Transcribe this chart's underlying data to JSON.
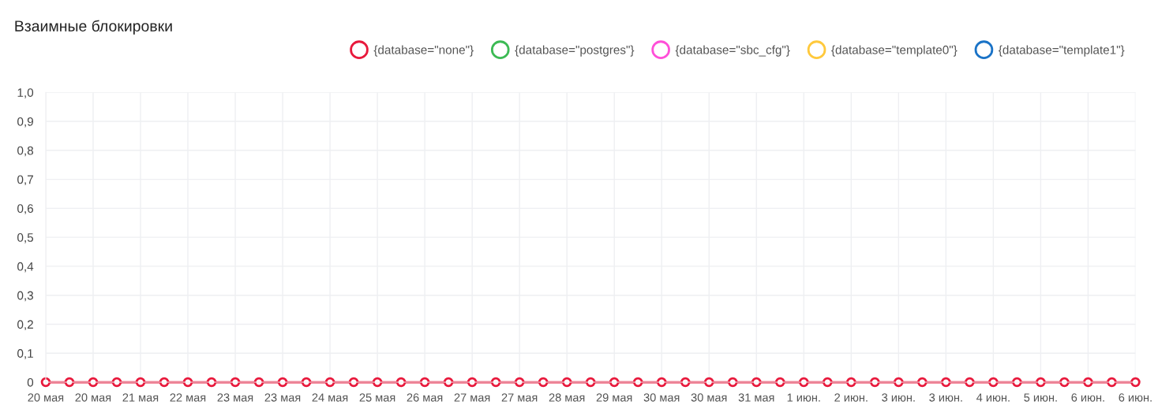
{
  "chart_data": {
    "type": "line",
    "title": "Взаимные блокировки",
    "categories": [
      "20 мая",
      null,
      "20 мая",
      null,
      "21 мая",
      null,
      "22 мая",
      null,
      "23 мая",
      null,
      "23 мая",
      null,
      "24 мая",
      null,
      "25 мая",
      null,
      "26 мая",
      null,
      "27 мая",
      null,
      "27 мая",
      null,
      "28 мая",
      null,
      "29 мая",
      null,
      "30 мая",
      null,
      "30 мая",
      null,
      "31 мая",
      null,
      "1 июн.",
      null,
      "2 июн.",
      null,
      "3 июн.",
      null,
      "3 июн.",
      null,
      "4 июн.",
      null,
      "5 июн.",
      null,
      "6 июн.",
      null,
      "6 июн."
    ],
    "series": [
      {
        "name": "{database=\"none\"}",
        "color": "#e8193c",
        "values": [
          0,
          0,
          0,
          0,
          0,
          0,
          0,
          0,
          0,
          0,
          0,
          0,
          0,
          0,
          0,
          0,
          0,
          0,
          0,
          0,
          0,
          0,
          0,
          0,
          0,
          0,
          0,
          0,
          0,
          0,
          0,
          0,
          0,
          0,
          0,
          0,
          0,
          0,
          0,
          0,
          0,
          0,
          0,
          0,
          0,
          0,
          0
        ]
      },
      {
        "name": "{database=\"postgres\"}",
        "color": "#3cba54",
        "values": [
          null,
          null,
          null,
          null,
          null,
          null,
          null,
          null,
          null,
          null,
          null,
          null,
          null,
          null,
          null,
          null,
          null,
          null,
          null,
          null,
          null,
          null,
          null,
          null,
          null,
          null,
          null,
          null,
          null,
          null,
          null,
          null,
          null,
          null,
          null,
          null,
          null,
          null,
          null,
          null,
          null,
          null,
          null,
          null,
          null,
          null,
          null
        ]
      },
      {
        "name": "{database=\"sbc_cfg\"}",
        "color": "#ff4fd8",
        "values": [
          null,
          null,
          null,
          null,
          null,
          null,
          null,
          null,
          null,
          null,
          null,
          null,
          null,
          null,
          null,
          null,
          null,
          null,
          null,
          null,
          null,
          null,
          null,
          null,
          null,
          null,
          null,
          null,
          null,
          null,
          null,
          null,
          null,
          null,
          null,
          null,
          null,
          null,
          null,
          null,
          null,
          null,
          null,
          null,
          null,
          null,
          null
        ]
      },
      {
        "name": "{database=\"template0\"}",
        "color": "#ffc93c",
        "values": [
          null,
          null,
          null,
          null,
          null,
          null,
          null,
          null,
          null,
          null,
          null,
          null,
          null,
          null,
          null,
          null,
          null,
          null,
          null,
          null,
          null,
          null,
          null,
          null,
          null,
          null,
          null,
          null,
          null,
          null,
          null,
          null,
          null,
          null,
          null,
          null,
          null,
          null,
          null,
          null,
          null,
          null,
          null,
          null,
          null,
          null,
          null
        ]
      },
      {
        "name": "{database=\"template1\"}",
        "color": "#1a73c7",
        "values": [
          null,
          null,
          null,
          null,
          null,
          null,
          null,
          null,
          null,
          null,
          null,
          null,
          null,
          null,
          null,
          null,
          null,
          null,
          null,
          null,
          null,
          null,
          null,
          null,
          null,
          null,
          null,
          null,
          null,
          null,
          null,
          null,
          null,
          null,
          null,
          null,
          null,
          null,
          null,
          null,
          null,
          null,
          null,
          null,
          null,
          null,
          null
        ]
      }
    ],
    "ylim": [
      0,
      1
    ],
    "yticks": [
      0,
      {
        "value": 0.1,
        "label": "0,1"
      },
      {
        "value": 0.2,
        "label": "0,2"
      },
      {
        "value": 0.3,
        "label": "0,3"
      },
      {
        "value": 0.4,
        "label": "0,4"
      },
      {
        "value": 0.5,
        "label": "0,5"
      },
      {
        "value": 0.6,
        "label": "0,6"
      },
      {
        "value": 0.7,
        "label": "0,7"
      },
      {
        "value": 0.8,
        "label": "0,8"
      },
      {
        "value": 0.9,
        "label": "0,9"
      },
      {
        "value": 1.0,
        "label": "1,0"
      }
    ],
    "grid": true,
    "legend": "top right",
    "marker": "circle",
    "line_style": "solid"
  }
}
